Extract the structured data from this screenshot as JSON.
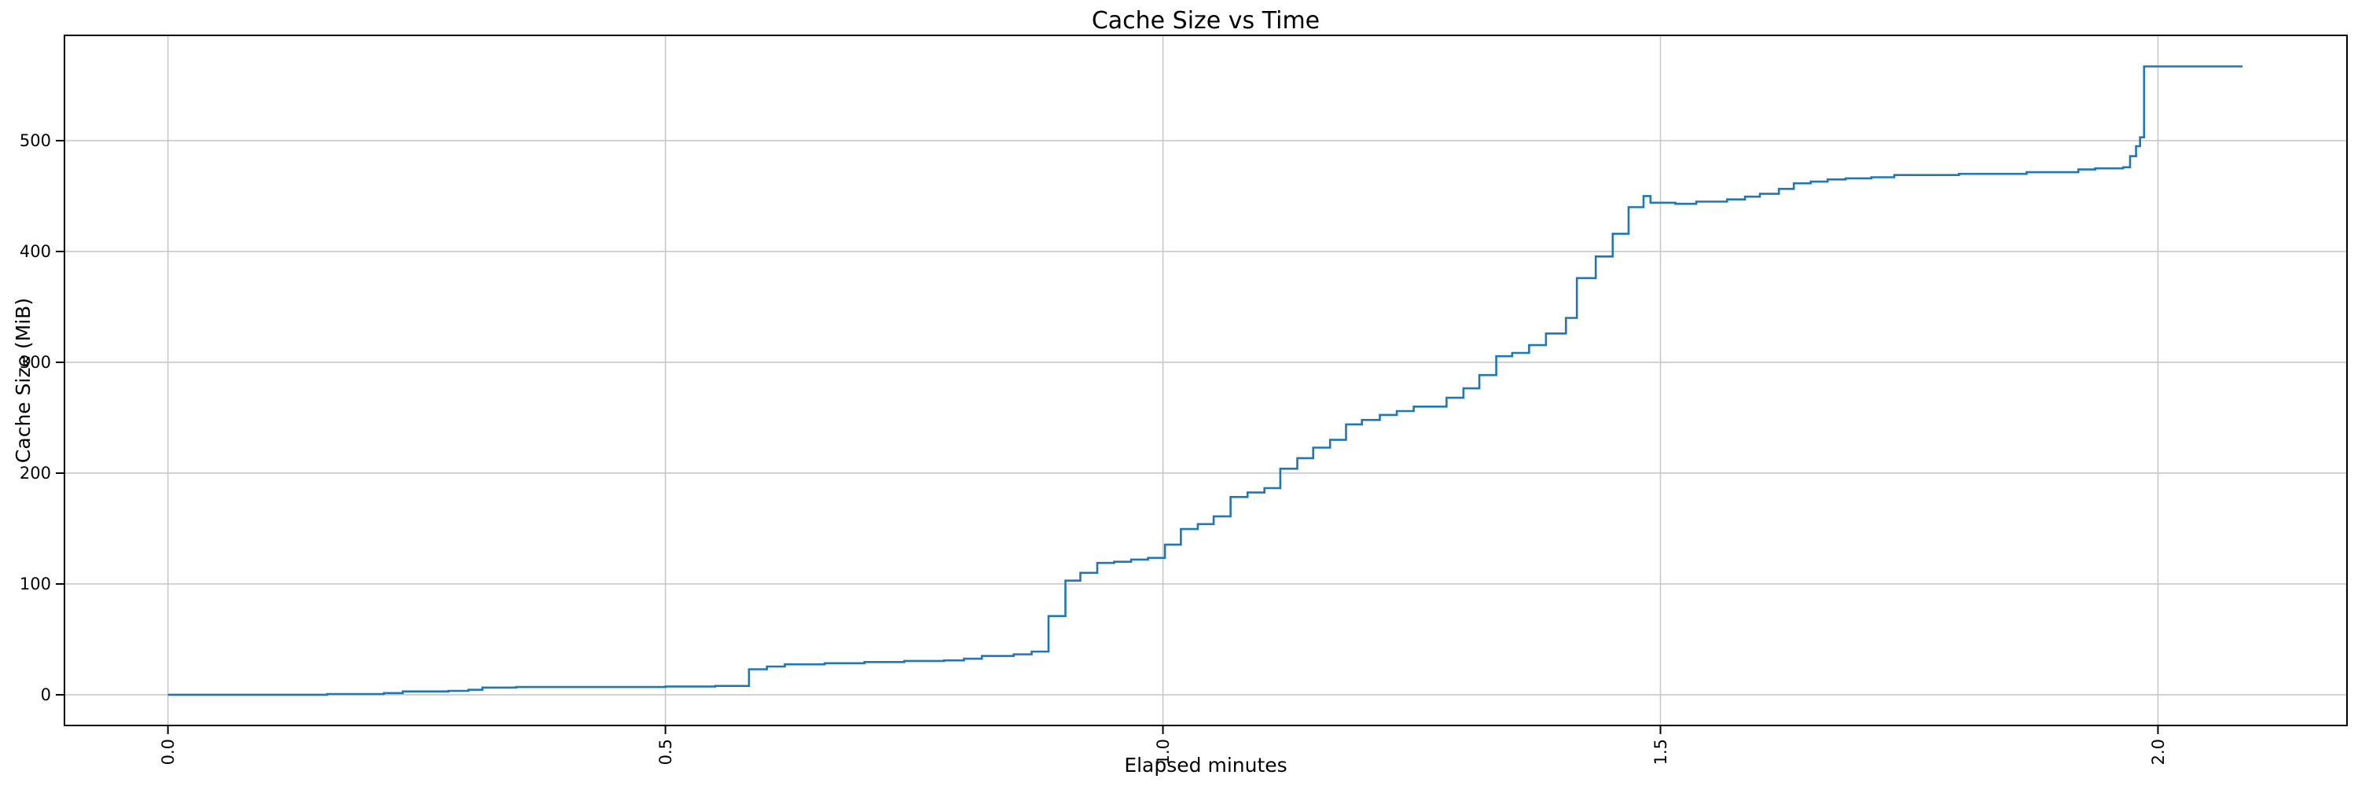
{
  "figure": {
    "background": "#ffffff"
  },
  "chart_data": {
    "type": "line",
    "step": "post",
    "title": "Cache Size vs Time",
    "xlabel": "Elapsed minutes",
    "ylabel": "Cache Size (MiB)",
    "legend": null,
    "grid": true,
    "grid_color": "#c8c8c8",
    "line_color": "#1f77b4",
    "spine_color": "#000000",
    "xlim": [
      -0.104,
      2.19
    ],
    "ylim": [
      -27.7,
      595
    ],
    "xtick_values": [
      0.0,
      0.5,
      1.0,
      1.5,
      2.0
    ],
    "xtick_labels": [
      "0.0",
      "0.5",
      "1.0",
      "1.5",
      "2.0"
    ],
    "xtick_rotation": 90,
    "ytick_values": [
      0,
      100,
      200,
      300,
      400,
      500
    ],
    "ytick_labels": [
      "0",
      "100",
      "200",
      "300",
      "400",
      "500"
    ],
    "x": [
      0.0,
      0.16,
      0.217,
      0.236,
      0.282,
      0.302,
      0.316,
      0.35,
      0.42,
      0.5,
      0.55,
      0.584,
      0.602,
      0.62,
      0.66,
      0.7,
      0.74,
      0.78,
      0.8,
      0.818,
      0.85,
      0.868,
      0.885,
      0.902,
      0.917,
      0.934,
      0.951,
      0.968,
      0.985,
      1.002,
      1.018,
      1.035,
      1.051,
      1.068,
      1.085,
      1.102,
      1.118,
      1.135,
      1.151,
      1.168,
      1.184,
      1.2,
      1.218,
      1.235,
      1.252,
      1.285,
      1.302,
      1.318,
      1.335,
      1.351,
      1.368,
      1.385,
      1.405,
      1.416,
      1.435,
      1.452,
      1.468,
      1.483,
      1.49,
      1.515,
      1.536,
      1.567,
      1.585,
      1.6,
      1.619,
      1.634,
      1.651,
      1.668,
      1.686,
      1.712,
      1.735,
      1.8,
      1.868,
      1.92,
      1.937,
      1.965,
      1.972,
      1.978,
      1.982,
      1.986,
      2.085
    ],
    "y": [
      0,
      0.7,
      1.5,
      3,
      3.5,
      4.5,
      6.5,
      7,
      7,
      7.5,
      8,
      23,
      25.5,
      27.5,
      28.5,
      29.5,
      30.5,
      31,
      32.5,
      35,
      36.5,
      39,
      71,
      103,
      110,
      119,
      120,
      122,
      123.5,
      135.5,
      149.5,
      154,
      161,
      178.5,
      182.5,
      186.5,
      204,
      213.5,
      223,
      230,
      244,
      248,
      252.5,
      256,
      260,
      268,
      276.5,
      288.5,
      305.5,
      308.5,
      315.5,
      326,
      340,
      376,
      395.5,
      416,
      440,
      450,
      444,
      443,
      445,
      447,
      449.5,
      452,
      456.5,
      461.5,
      463,
      465,
      466,
      467,
      469,
      470,
      471.5,
      474,
      475,
      476,
      486,
      495,
      503,
      567,
      567
    ]
  }
}
